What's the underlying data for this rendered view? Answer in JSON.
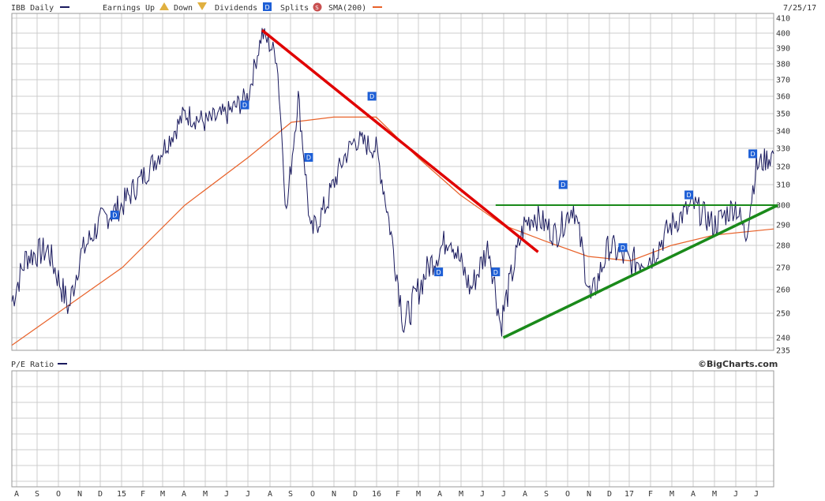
{
  "header": {
    "symbol_label": "IBB Daily",
    "earnings_label": "Earnings",
    "up_label": "Up",
    "down_label": "Down",
    "dividends_label": "Dividends",
    "splits_label": "Splits",
    "sma_label": "SMA(200)",
    "date_label": "7/25/17"
  },
  "lower_panel": {
    "label": "P/E Ratio",
    "brand": "©BigCharts.com"
  },
  "colors": {
    "price": "#1a1a5e",
    "sma": "#e8622a",
    "grid": "#cccccc",
    "red_line": "#e00000",
    "green_line": "#1a8a1a",
    "dividend_badge": "#1e5fd6"
  },
  "chart_data": {
    "type": "line",
    "title": "IBB Daily",
    "y_ticks": [
      235,
      240,
      250,
      260,
      270,
      280,
      290,
      300,
      310,
      320,
      330,
      340,
      350,
      360,
      370,
      380,
      390,
      400,
      410
    ],
    "ylim": [
      235,
      410
    ],
    "x_tick_labels": [
      "A",
      "S",
      "O",
      "N",
      "D",
      "15",
      "F",
      "M",
      "A",
      "M",
      "J",
      "J",
      "A",
      "S",
      "O",
      "N",
      "D",
      "16",
      "F",
      "M",
      "A",
      "M",
      "J",
      "J",
      "A",
      "S",
      "O",
      "N",
      "D",
      "17",
      "F",
      "M",
      "A",
      "M",
      "J",
      "J"
    ],
    "x_range": [
      "2014-07-25",
      "2017-07-25"
    ],
    "series": [
      {
        "name": "IBB",
        "x": [
          "2014-07-25",
          "2014-08-15",
          "2014-09-15",
          "2014-10-15",
          "2014-10-31",
          "2014-11-30",
          "2014-12-31",
          "2015-01-31",
          "2015-02-28",
          "2015-03-31",
          "2015-04-30",
          "2015-05-31",
          "2015-06-30",
          "2015-07-20",
          "2015-08-10",
          "2015-08-24",
          "2015-09-10",
          "2015-09-28",
          "2015-10-20",
          "2015-11-15",
          "2015-12-01",
          "2015-12-31",
          "2016-01-15",
          "2016-02-09",
          "2016-03-15",
          "2016-04-15",
          "2016-05-15",
          "2016-06-10",
          "2016-06-27",
          "2016-07-31",
          "2016-08-15",
          "2016-09-15",
          "2016-10-10",
          "2016-11-04",
          "2016-11-30",
          "2016-12-31",
          "2017-01-31",
          "2017-02-28",
          "2017-03-31",
          "2017-04-30",
          "2017-05-31",
          "2017-06-15",
          "2017-06-30",
          "2017-07-25"
        ],
        "values": [
          255,
          275,
          278,
          252,
          275,
          292,
          300,
          315,
          330,
          350,
          345,
          350,
          360,
          400,
          385,
          295,
          360,
          285,
          300,
          325,
          335,
          330,
          300,
          245,
          270,
          285,
          260,
          280,
          245,
          290,
          295,
          285,
          300,
          255,
          280,
          272,
          275,
          290,
          300,
          290,
          300,
          285,
          320,
          327
        ]
      },
      {
        "name": "SMA(200)",
        "x": [
          "2014-07-25",
          "2014-12-31",
          "2015-03-31",
          "2015-06-30",
          "2015-08-31",
          "2015-10-31",
          "2015-12-31",
          "2016-02-29",
          "2016-04-30",
          "2016-06-30",
          "2016-08-31",
          "2016-10-31",
          "2016-12-31",
          "2017-02-28",
          "2017-04-30",
          "2017-07-25"
        ],
        "values": [
          237,
          270,
          300,
          325,
          345,
          348,
          348,
          325,
          305,
          290,
          282,
          275,
          273,
          280,
          285,
          288
        ]
      }
    ],
    "trend_lines": [
      {
        "name": "red-downtrend",
        "from": [
          "2015-07-20",
          402
        ],
        "to": [
          "2016-08-20",
          277
        ]
      },
      {
        "name": "green-resistance",
        "from": [
          "2016-06-20",
          300
        ],
        "to": [
          "2017-07-31",
          300
        ]
      },
      {
        "name": "green-uptrend",
        "from": [
          "2016-07-01",
          240
        ],
        "to": [
          "2017-07-31",
          300
        ]
      }
    ],
    "dividends": [
      {
        "x": "2014-12-20",
        "y": 295
      },
      {
        "x": "2015-06-25",
        "y": 355
      },
      {
        "x": "2015-09-25",
        "y": 325
      },
      {
        "x": "2015-12-25",
        "y": 360
      },
      {
        "x": "2016-03-30",
        "y": 268
      },
      {
        "x": "2016-06-20",
        "y": 268
      },
      {
        "x": "2016-09-25",
        "y": 310
      },
      {
        "x": "2016-12-20",
        "y": 279
      },
      {
        "x": "2017-03-25",
        "y": 305
      },
      {
        "x": "2017-06-25",
        "y": 327
      }
    ],
    "grid": true
  }
}
